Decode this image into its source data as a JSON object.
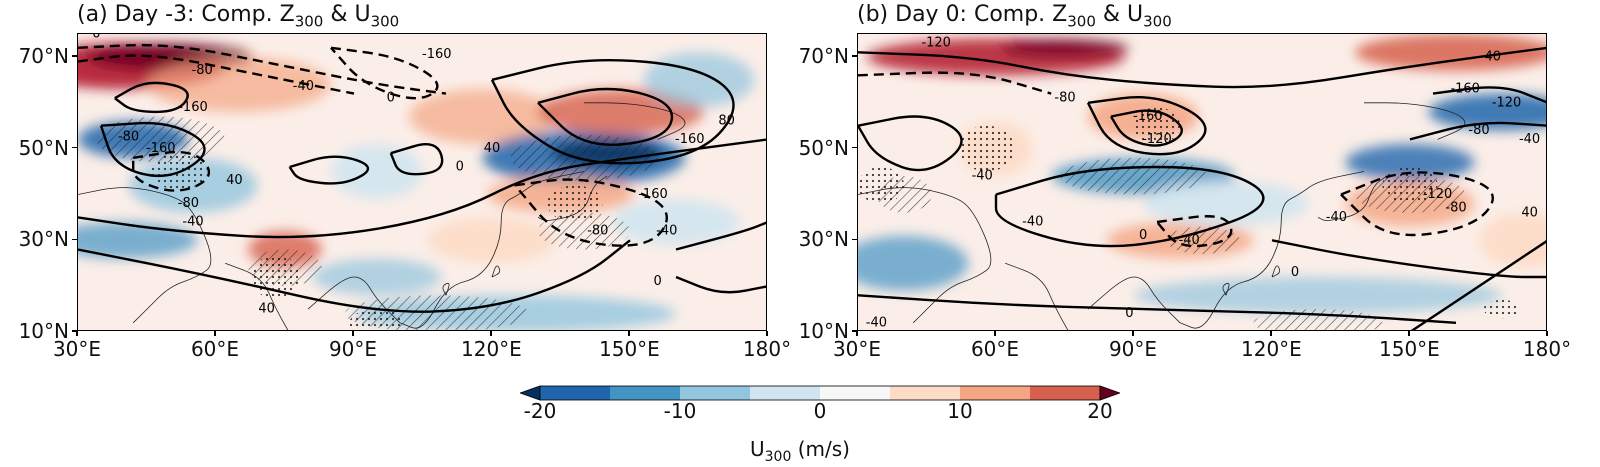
{
  "panels": [
    {
      "id": "a",
      "title_main": "(a) Day -3: Comp. Z",
      "title_sub1": "300",
      "title_mid": " & U",
      "title_sub2": "300",
      "contour_labels": [
        {
          "text": "-160",
          "lon": 108,
          "lat": 70.5
        },
        {
          "text": "-80",
          "lon": 57,
          "lat": 67
        },
        {
          "text": "-40",
          "lon": 79,
          "lat": 63.5
        },
        {
          "text": "0",
          "lon": 98,
          "lat": 61
        },
        {
          "text": "-160",
          "lon": 55,
          "lat": 59
        },
        {
          "text": "-80",
          "lon": 41,
          "lat": 52.5
        },
        {
          "text": "-160",
          "lon": 48,
          "lat": 50
        },
        {
          "text": "40",
          "lon": 64,
          "lat": 43
        },
        {
          "text": "-80",
          "lon": 54,
          "lat": 38
        },
        {
          "text": "-40",
          "lon": 55,
          "lat": 34
        },
        {
          "text": "0",
          "lon": 34,
          "lat": 75
        },
        {
          "text": "0",
          "lon": 113,
          "lat": 46
        },
        {
          "text": "40",
          "lon": 71,
          "lat": 15
        },
        {
          "text": "-160",
          "lon": 163,
          "lat": 52
        },
        {
          "text": "80",
          "lon": 171,
          "lat": 56
        },
        {
          "text": "-160",
          "lon": 155,
          "lat": 40
        },
        {
          "text": "-80",
          "lon": 143,
          "lat": 32
        },
        {
          "text": "-40",
          "lon": 158,
          "lat": 32
        },
        {
          "text": "0",
          "lon": 156,
          "lat": 21
        },
        {
          "text": "40",
          "lon": 120,
          "lat": 50
        }
      ]
    },
    {
      "id": "b",
      "title_main": "(b) Day 0: Comp. Z",
      "title_sub1": "300",
      "title_mid": " & U",
      "title_sub2": "300",
      "contour_labels": [
        {
          "text": "-120",
          "lon": 47,
          "lat": 73
        },
        {
          "text": "-80",
          "lon": 75,
          "lat": 61
        },
        {
          "text": "40",
          "lon": 168,
          "lat": 70
        },
        {
          "text": "-160",
          "lon": 93,
          "lat": 57
        },
        {
          "text": "-120",
          "lon": 95,
          "lat": 52
        },
        {
          "text": "-40",
          "lon": 57,
          "lat": 44
        },
        {
          "text": "-40",
          "lon": 68,
          "lat": 34
        },
        {
          "text": "0",
          "lon": 92,
          "lat": 31
        },
        {
          "text": "-40",
          "lon": 102,
          "lat": 30
        },
        {
          "text": "-160",
          "lon": 162,
          "lat": 63
        },
        {
          "text": "-120",
          "lon": 171,
          "lat": 60
        },
        {
          "text": "-80",
          "lon": 165,
          "lat": 54
        },
        {
          "text": "-40",
          "lon": 176,
          "lat": 52
        },
        {
          "text": "40",
          "lon": 176,
          "lat": 36
        },
        {
          "text": "-120",
          "lon": 156,
          "lat": 40
        },
        {
          "text": "-80",
          "lon": 160,
          "lat": 37
        },
        {
          "text": "-40",
          "lon": 134,
          "lat": 35
        },
        {
          "text": "0",
          "lon": 125,
          "lat": 23
        },
        {
          "text": "0",
          "lon": 89,
          "lat": 14
        },
        {
          "text": "-40",
          "lon": 34,
          "lat": 12
        }
      ]
    }
  ],
  "axes": {
    "x_ticks": [
      "30°E",
      "60°E",
      "90°E",
      "120°E",
      "150°E",
      "180°"
    ],
    "x_values": [
      30,
      60,
      90,
      120,
      150,
      180
    ],
    "y_ticks": [
      "10°N",
      "30°N",
      "50°N",
      "70°N"
    ],
    "y_values": [
      10,
      30,
      50,
      70
    ],
    "lon_range": [
      30,
      180
    ],
    "lat_range": [
      10,
      75
    ]
  },
  "colorbar": {
    "title_main": "U",
    "title_sub": "300",
    "title_units": " (m/s)",
    "ticks": [
      "-20",
      "-10",
      "0",
      "10",
      "20"
    ],
    "tick_values": [
      -20,
      -10,
      0,
      10,
      20
    ],
    "levels": [
      -25,
      -20,
      -15,
      -10,
      -5,
      0,
      5,
      10,
      15,
      20,
      25
    ],
    "colors": [
      "#053061",
      "#2166ac",
      "#4393c3",
      "#92c5de",
      "#d1e5f0",
      "#f7f7f7",
      "#fddbc7",
      "#f4a582",
      "#d6604d",
      "#b2182b",
      "#67001f"
    ],
    "extend": "both"
  }
}
